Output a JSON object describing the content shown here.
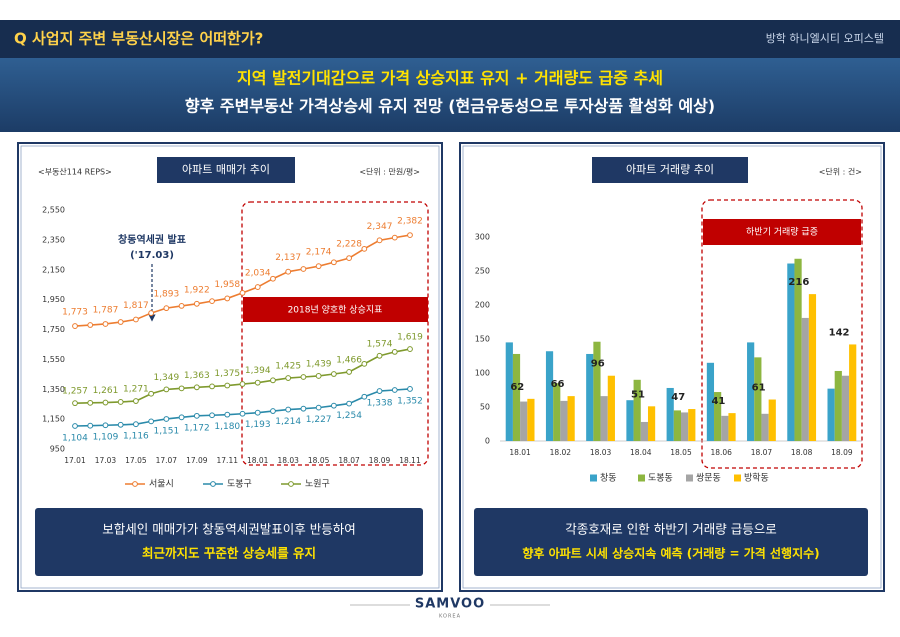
{
  "header": {
    "question": "Q 사업지 주변 부동산시장은 어떠한가?",
    "project": "방학 하니엘시티 오피스텔"
  },
  "banner": [
    "지역 발전기대감으로 가격 상승지표 유지 + 거래량도 급증 추세",
    "향후 주변부동산 가격상승세 유지 전망 (현금유동성으로 투자상품 활성화 예상)"
  ],
  "captions": [
    [
      "보합세인 매매가가 창동역세권발표이후 반등하여",
      "최근까지도 꾸준한 상승세를 유지"
    ],
    [
      "각종호재로 인한 하반기 거래량 급등으로",
      "향후 아파트 시세 상승지속 예측 (거래량 = 가격 선행지수)"
    ]
  ],
  "logo": {
    "name": "SAMVOO",
    "sub": "KOREA"
  },
  "chart_data": [
    {
      "type": "line",
      "title": "아파트 매매가 추이",
      "source": "<부동산114 REPS>",
      "unit": "<단위 : 만원/평>",
      "categories": [
        "17.01",
        null,
        "17.03",
        null,
        "17.05",
        null,
        "17.07",
        null,
        "17.09",
        null,
        "17.11",
        null,
        "18.01",
        null,
        "18.03",
        null,
        "18.05",
        null,
        "18.07",
        null,
        "18.09",
        null,
        "18.11"
      ],
      "series": [
        {
          "name": "서울시",
          "color": "#ed7d31",
          "values": [
            1773,
            1780,
            1787,
            1800,
            1817,
            1860,
            1893,
            1908,
            1922,
            1940,
            1958,
            1995,
            2034,
            2090,
            2137,
            2155,
            2174,
            2200,
            2228,
            2290,
            2347,
            2365,
            2382
          ],
          "value_labels": [
            "1,773",
            null,
            "1,787",
            null,
            "1,817",
            null,
            "1,893",
            null,
            "1,922",
            null,
            "1,958",
            null,
            "2,034",
            null,
            "2,137",
            null,
            "2,174",
            null,
            "2,228",
            null,
            "2,347",
            null,
            "2,382"
          ]
        },
        {
          "name": "도봉구",
          "color": "#2a8aaa",
          "values": [
            1104,
            1106,
            1109,
            1112,
            1116,
            1135,
            1151,
            1162,
            1172,
            1176,
            1180,
            1186,
            1193,
            1204,
            1214,
            1220,
            1227,
            1240,
            1254,
            1300,
            1338,
            1345,
            1352
          ],
          "value_labels": [
            "1,104",
            null,
            "1,109",
            null,
            "1,116",
            null,
            "1,151",
            null,
            "1,172",
            null,
            "1,180",
            null,
            "1,193",
            null,
            "1,214",
            null,
            "1,227",
            null,
            "1,254",
            null,
            "1,338",
            null,
            "1,352"
          ]
        },
        {
          "name": "노원구",
          "color": "#7f9a2e",
          "values": [
            1257,
            1259,
            1261,
            1265,
            1271,
            1320,
            1349,
            1356,
            1363,
            1369,
            1375,
            1385,
            1394,
            1410,
            1425,
            1432,
            1439,
            1452,
            1466,
            1520,
            1574,
            1600,
            1619
          ],
          "value_labels": [
            "1,257",
            null,
            "1,261",
            null,
            "1,271",
            null,
            "1,349",
            null,
            "1,363",
            null,
            "1,375",
            null,
            "1,394",
            null,
            "1,425",
            null,
            "1,439",
            null,
            "1,466",
            null,
            "1,574",
            null,
            "1,619"
          ]
        }
      ],
      "ylim": [
        950,
        2550
      ],
      "yticks": [
        950,
        {
          "value": 1150,
          "label": "1,150"
        },
        {
          "value": 1350,
          "label": "1,350"
        },
        {
          "value": 1550,
          "label": "1,550"
        },
        {
          "value": 1750,
          "label": "1,750"
        },
        {
          "value": 1950,
          "label": "1,950"
        },
        {
          "value": 2150,
          "label": "2,150"
        },
        {
          "value": 2350,
          "label": "2,350"
        },
        {
          "value": 2550,
          "label": "2,550"
        }
      ],
      "annotations": [
        "창동역세권 발표",
        "('17.03)",
        "2018년 양호한 상승지표"
      ]
    },
    {
      "type": "bar",
      "title": "아파트 거래량 추이",
      "unit": "<단위 : 건>",
      "categories": [
        "18.01",
        "18.02",
        "18.03",
        "18.04",
        "18.05",
        "18.06",
        "18.07",
        "18.08",
        "18.09"
      ],
      "series": [
        {
          "name": "창동",
          "color": "#3aa3c9",
          "values": [
            145,
            132,
            128,
            60,
            78,
            115,
            145,
            261,
            77
          ]
        },
        {
          "name": "도봉동",
          "color": "#8db640",
          "values": [
            128,
            85,
            146,
            90,
            45,
            72,
            123,
            268,
            103
          ]
        },
        {
          "name": "쌍문동",
          "color": "#a5a5a5",
          "values": [
            58,
            59,
            66,
            28,
            42,
            37,
            40,
            181,
            96
          ]
        },
        {
          "name": "방학동",
          "color": "#ffc000",
          "values": [
            62,
            66,
            96,
            51,
            47,
            41,
            61,
            216,
            142
          ],
          "show_labels": true
        }
      ],
      "ylim": [
        0,
        300
      ],
      "yticks": [
        0,
        50,
        100,
        150,
        200,
        250,
        300
      ],
      "annotations": [
        "하반기 거래량 급증"
      ]
    }
  ]
}
